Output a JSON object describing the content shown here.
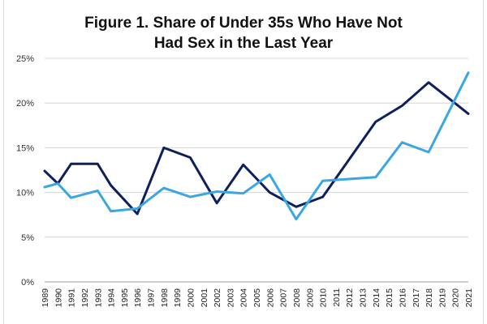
{
  "title": [
    "Figure 1. Share of Under 35s Who Have Not",
    "Had Sex in the Last Year"
  ],
  "chart_data": {
    "type": "line",
    "title": "Figure 1. Share of Under 35s Who Have Not Had Sex in the Last Year",
    "xlabel": "",
    "ylabel": "",
    "x": [
      1989,
      1990,
      1991,
      1993,
      1994,
      1996,
      1998,
      2000,
      2002,
      2004,
      2006,
      2008,
      2010,
      2012,
      2014,
      2016,
      2018,
      2021
    ],
    "ylim": [
      0,
      25
    ],
    "yticks": [
      0,
      5,
      10,
      15,
      20,
      25
    ],
    "ytick_labels": [
      "0%",
      "5%",
      "10%",
      "15%",
      "20%",
      "25%"
    ],
    "xtick_labels": [
      "1989",
      "1990",
      "1991",
      "1992",
      "1993",
      "1994",
      "1995",
      "1996",
      "1997",
      "1998",
      "1999",
      "2000",
      "2001",
      "2002",
      "2003",
      "2004",
      "2005",
      "2006",
      "2007",
      "2008",
      "2009",
      "2010",
      "2011",
      "2012",
      "2013",
      "2014",
      "2015",
      "2016",
      "2017",
      "2018",
      "2019",
      "2020",
      "2021"
    ],
    "grid": true,
    "series": [
      {
        "color": "#0d1f5c",
        "points": [
          [
            1989,
            12.4
          ],
          [
            1990,
            11.0
          ],
          [
            1991,
            13.2
          ],
          [
            1993,
            13.2
          ],
          [
            1994,
            10.8
          ],
          [
            1996,
            7.6
          ],
          [
            1998,
            15.0
          ],
          [
            2000,
            13.9
          ],
          [
            2002,
            8.8
          ],
          [
            2004,
            13.1
          ],
          [
            2006,
            10.0
          ],
          [
            2008,
            8.4
          ],
          [
            2010,
            9.5
          ],
          [
            2014,
            17.9
          ],
          [
            2016,
            19.7
          ],
          [
            2018,
            22.3
          ],
          [
            2021,
            18.8
          ]
        ]
      },
      {
        "color": "#3aa7e4",
        "points": [
          [
            1989,
            10.6
          ],
          [
            1990,
            11.0
          ],
          [
            1991,
            9.4
          ],
          [
            1993,
            10.2
          ],
          [
            1994,
            7.9
          ],
          [
            1996,
            8.2
          ],
          [
            1998,
            10.5
          ],
          [
            2000,
            9.5
          ],
          [
            2002,
            10.1
          ],
          [
            2004,
            9.9
          ],
          [
            2006,
            12.0
          ],
          [
            2008,
            7.0
          ],
          [
            2010,
            11.3
          ],
          [
            2014,
            11.7
          ],
          [
            2016,
            15.6
          ],
          [
            2018,
            14.5
          ],
          [
            2021,
            23.4
          ]
        ]
      }
    ]
  }
}
